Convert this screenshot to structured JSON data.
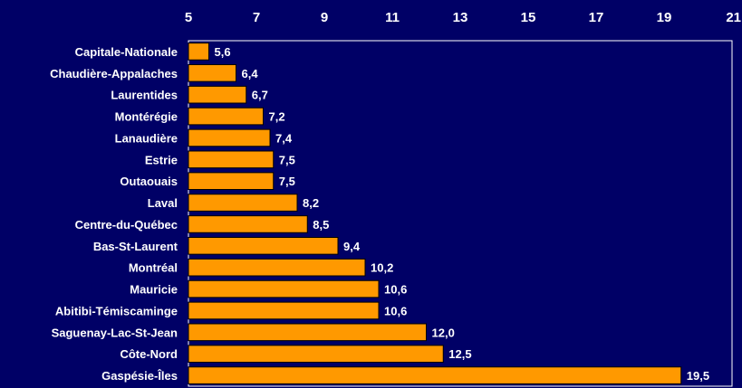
{
  "chart_data": {
    "type": "bar",
    "orientation": "horizontal",
    "categories": [
      "Capitale-Nationale",
      "Chaudière-Appalaches",
      "Laurentides",
      "Montérégie",
      "Lanaudière",
      "Estrie",
      "Outaouais",
      "Laval",
      "Centre-du-Québec",
      "Bas-St-Laurent",
      "Montréal",
      "Mauricie",
      "Abitibi-Témiscaminge",
      "Saguenay-Lac-St-Jean",
      "Côte-Nord",
      "Gaspésie-Îles"
    ],
    "values": [
      5.6,
      6.4,
      6.7,
      7.2,
      7.4,
      7.5,
      7.5,
      8.2,
      8.5,
      9.4,
      10.2,
      10.6,
      10.6,
      12.0,
      12.5,
      19.5
    ],
    "value_labels": [
      "5,6",
      "6,4",
      "6,7",
      "7,2",
      "7,4",
      "7,5",
      "7,5",
      "8,2",
      "8,5",
      "9,4",
      "10,2",
      "10,6",
      "10,6",
      "12,0",
      "12,5",
      "19,5"
    ],
    "xlim": [
      5,
      21
    ],
    "xticks": [
      "5",
      "7",
      "9",
      "11",
      "13",
      "15",
      "17",
      "19",
      "21"
    ],
    "axis_position": "top",
    "grid": false,
    "legend": "none",
    "title": "",
    "xlabel": "",
    "ylabel": "",
    "colors": {
      "background": "#000066",
      "bar_fill": "#FF9900",
      "bar_stroke": "#000000",
      "plot_border": "#ffffff",
      "text": "#ffffff"
    }
  }
}
